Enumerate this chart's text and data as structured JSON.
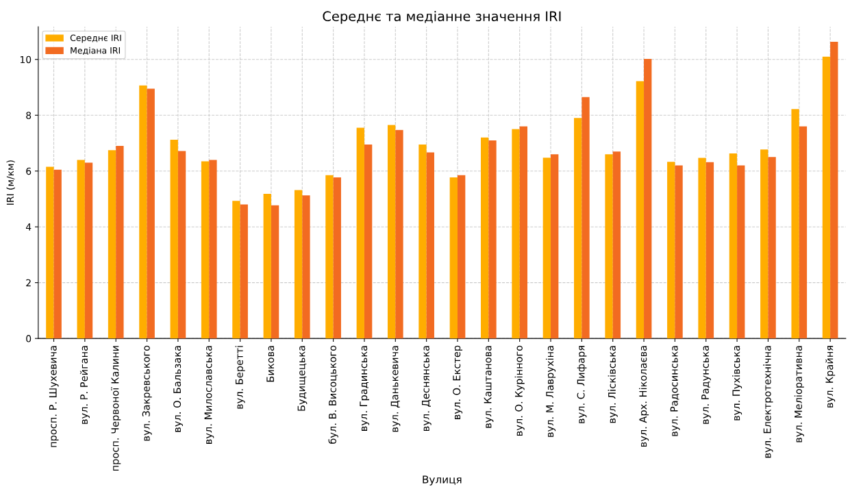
{
  "chart_data": {
    "type": "bar",
    "title": "Середнє та медіанне значення IRI",
    "xlabel": "Вулиця",
    "ylabel": "IRI (м/км)",
    "categories": [
      "просп. Р. Шухевича",
      "вул. Р. Рейгана",
      "просп. Червоної Калини",
      "вул. Закревського",
      "вул. О. Бальзака",
      "вул. Милославська",
      "вул. Беретті",
      "Бикова",
      "Будищецька",
      "бул. В. Висоцького",
      "вул. Градинська",
      "вул. Данькевича",
      "вул. Деснянська",
      "вул. О. Екстер",
      "вул. Каштанова",
      "вул. О. Курінного",
      "вул. М. Лаврухіна",
      "вул. С. Лифаря",
      "вул. Лісківська",
      "вул. Арх. Ніколаєва",
      "вул. Радосинська",
      "вул. Радунська",
      "вул. Пухівська",
      "вул. Електротехнічна",
      "вул. Меліоративна",
      "вул. Крайня"
    ],
    "series": [
      {
        "name": "Середнє IRI",
        "color": "#ffad00",
        "values": [
          6.15,
          6.4,
          6.75,
          9.07,
          7.12,
          6.35,
          4.93,
          5.18,
          5.32,
          5.85,
          7.55,
          7.65,
          6.95,
          5.77,
          7.2,
          7.5,
          6.48,
          7.9,
          6.6,
          9.22,
          6.33,
          6.47,
          6.63,
          6.77,
          8.22,
          10.1
        ]
      },
      {
        "name": "Медіана IRI",
        "color": "#f26b21",
        "values": [
          6.05,
          6.3,
          6.9,
          8.95,
          6.72,
          6.4,
          4.8,
          4.77,
          5.13,
          5.77,
          6.95,
          7.47,
          6.67,
          5.85,
          7.1,
          7.6,
          6.6,
          8.65,
          6.7,
          10.02,
          6.2,
          6.32,
          6.2,
          6.5,
          7.6,
          10.63
        ]
      }
    ],
    "ylim": [
      0,
      11.17
    ],
    "yticks": [
      0,
      2,
      4,
      6,
      8,
      10
    ],
    "grid": true,
    "legend": "top left"
  }
}
